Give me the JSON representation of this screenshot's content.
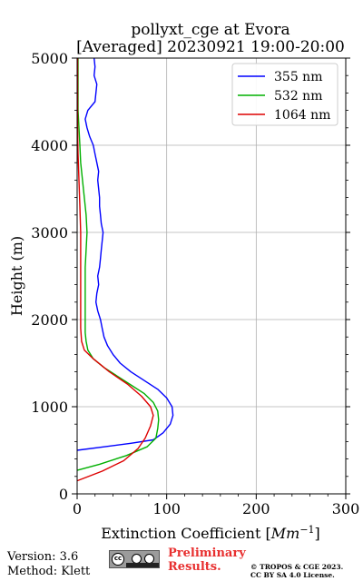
{
  "chart_data": {
    "type": "line",
    "title": "pollyxt_cge at Evora",
    "subtitle": "[Averaged] 20230921 19:00-20:00",
    "xlabel": "Extinction Coefficient [Mm⁻¹]",
    "ylabel": "Height (m)",
    "xlim": [
      0,
      300
    ],
    "ylim": [
      0,
      5000
    ],
    "xticks": [
      0,
      100,
      200,
      300
    ],
    "yticks": [
      0,
      1000,
      2000,
      3000,
      4000,
      5000
    ],
    "grid": true,
    "legend_position": "top-right",
    "series": [
      {
        "name": "355 nm",
        "color": "#0000ff",
        "points": [
          [
            0,
            500
          ],
          [
            30,
            540
          ],
          [
            60,
            580
          ],
          [
            85,
            620
          ],
          [
            96,
            700
          ],
          [
            104,
            800
          ],
          [
            107,
            900
          ],
          [
            106,
            1000
          ],
          [
            100,
            1100
          ],
          [
            90,
            1200
          ],
          [
            75,
            1300
          ],
          [
            60,
            1400
          ],
          [
            48,
            1500
          ],
          [
            40,
            1600
          ],
          [
            34,
            1700
          ],
          [
            30,
            1800
          ],
          [
            28,
            1900
          ],
          [
            26,
            2000
          ],
          [
            23,
            2100
          ],
          [
            21,
            2200
          ],
          [
            22,
            2300
          ],
          [
            24,
            2400
          ],
          [
            23,
            2500
          ],
          [
            25,
            2600
          ],
          [
            26,
            2700
          ],
          [
            27,
            2800
          ],
          [
            28,
            2900
          ],
          [
            29,
            3000
          ],
          [
            27,
            3100
          ],
          [
            26,
            3200
          ],
          [
            25,
            3300
          ],
          [
            25,
            3400
          ],
          [
            24,
            3500
          ],
          [
            23,
            3600
          ],
          [
            24,
            3700
          ],
          [
            22,
            3800
          ],
          [
            20,
            3900
          ],
          [
            18,
            4000
          ],
          [
            14,
            4100
          ],
          [
            11,
            4200
          ],
          [
            9,
            4300
          ],
          [
            12,
            4400
          ],
          [
            20,
            4500
          ],
          [
            21,
            4600
          ],
          [
            22,
            4700
          ],
          [
            19,
            4800
          ],
          [
            20,
            4900
          ],
          [
            19,
            5000
          ]
        ]
      },
      {
        "name": "532 nm",
        "color": "#00b000",
        "points": [
          [
            0,
            270
          ],
          [
            25,
            340
          ],
          [
            55,
            440
          ],
          [
            78,
            540
          ],
          [
            88,
            640
          ],
          [
            90,
            750
          ],
          [
            91,
            850
          ],
          [
            90,
            950
          ],
          [
            85,
            1050
          ],
          [
            75,
            1150
          ],
          [
            60,
            1250
          ],
          [
            45,
            1350
          ],
          [
            30,
            1450
          ],
          [
            18,
            1550
          ],
          [
            12,
            1650
          ],
          [
            10,
            1750
          ],
          [
            9,
            1850
          ],
          [
            9,
            1950
          ],
          [
            9,
            2050
          ],
          [
            9,
            2200
          ],
          [
            9,
            2400
          ],
          [
            9,
            2600
          ],
          [
            10,
            2800
          ],
          [
            11,
            3000
          ],
          [
            10,
            3200
          ],
          [
            8,
            3400
          ],
          [
            6,
            3600
          ],
          [
            4,
            3800
          ],
          [
            3,
            4000
          ],
          [
            2,
            4200
          ],
          [
            1,
            4400
          ],
          [
            1,
            4600
          ],
          [
            1,
            4800
          ],
          [
            1,
            5000
          ]
        ]
      },
      {
        "name": "1064 nm",
        "color": "#dd0000",
        "points": [
          [
            0,
            150
          ],
          [
            28,
            260
          ],
          [
            52,
            380
          ],
          [
            68,
            520
          ],
          [
            76,
            640
          ],
          [
            82,
            780
          ],
          [
            85,
            900
          ],
          [
            82,
            1000
          ],
          [
            72,
            1120
          ],
          [
            56,
            1260
          ],
          [
            36,
            1400
          ],
          [
            18,
            1550
          ],
          [
            8,
            1650
          ],
          [
            5,
            1750
          ],
          [
            4,
            1900
          ],
          [
            4,
            2100
          ],
          [
            4,
            2400
          ],
          [
            4,
            2700
          ],
          [
            4,
            3000
          ],
          [
            3,
            3300
          ],
          [
            2,
            3600
          ],
          [
            1,
            3900
          ],
          [
            0.5,
            4200
          ],
          [
            0.5,
            4500
          ],
          [
            0.5,
            4800
          ],
          [
            0.5,
            5000
          ]
        ]
      }
    ]
  },
  "footer": {
    "version": "Version: 3.6",
    "method": "Method: Klett",
    "preliminary": [
      "Preliminary",
      "Results."
    ],
    "copyright": [
      "© TROPOS & CGE 2023.",
      "CC BY SA 4.0 License."
    ],
    "license_badge": "CC BY SA"
  }
}
